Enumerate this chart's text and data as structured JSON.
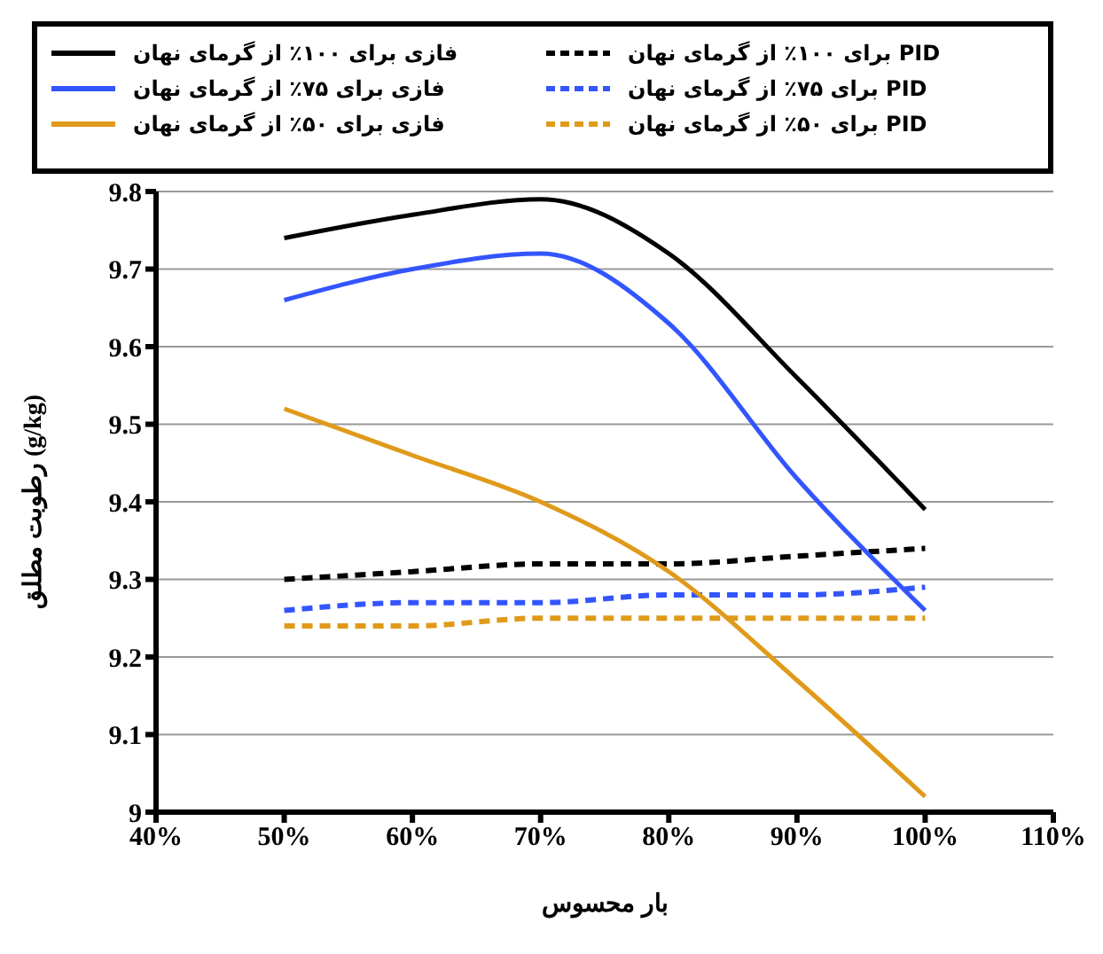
{
  "chart_data": {
    "type": "line",
    "xlabel": "بار محسوس",
    "ylabel": "رطوبت مطلق (g/kg)",
    "x": [
      50,
      60,
      70,
      80,
      90,
      100
    ],
    "xlim": [
      40,
      110
    ],
    "xticks": [
      {
        "value": 40,
        "label": "40%"
      },
      {
        "value": 50,
        "label": "50%"
      },
      {
        "value": 60,
        "label": "60%"
      },
      {
        "value": 70,
        "label": "70%"
      },
      {
        "value": 80,
        "label": "80%"
      },
      {
        "value": 90,
        "label": "90%"
      },
      {
        "value": 100,
        "label": "100%"
      },
      {
        "value": 110,
        "label": "110%"
      }
    ],
    "ylim": [
      9,
      9.8
    ],
    "yticks": [
      9,
      9.1,
      9.2,
      9.3,
      9.4,
      9.5,
      9.6,
      9.7,
      9.8
    ],
    "grid": "y",
    "legend": "top",
    "marker": "none",
    "series": [
      {
        "name": "فازی برای ۱۰۰٪ از گرمای نهان",
        "color": "#000000",
        "line_style": "solid",
        "values": [
          9.74,
          9.77,
          9.79,
          9.72,
          9.56,
          9.39
        ]
      },
      {
        "name": "PID برای ۱۰۰٪ از گرمای نهان",
        "color": "#000000",
        "line_style": "dashed",
        "values": [
          9.3,
          9.31,
          9.32,
          9.32,
          9.33,
          9.34
        ]
      },
      {
        "name": "فازی برای ۷۵٪ از گرمای نهان",
        "color": "#3355ff",
        "line_style": "solid",
        "values": [
          9.66,
          9.7,
          9.72,
          9.63,
          9.43,
          9.26
        ]
      },
      {
        "name": "PID برای ۷۵٪ از گرمای نهان",
        "color": "#3355ff",
        "line_style": "dashed",
        "values": [
          9.26,
          9.27,
          9.27,
          9.28,
          9.28,
          9.29
        ]
      },
      {
        "name": "فازی برای ۵۰٪ از گرمای نهان",
        "color": "#e09a1a",
        "line_style": "solid",
        "values": [
          9.52,
          9.46,
          9.4,
          9.31,
          9.17,
          9.02
        ]
      },
      {
        "name": "PID برای ۵۰٪ از گرمای نهان",
        "color": "#e09a1a",
        "line_style": "dashed",
        "values": [
          9.24,
          9.24,
          9.25,
          9.25,
          9.25,
          9.25
        ]
      }
    ]
  }
}
